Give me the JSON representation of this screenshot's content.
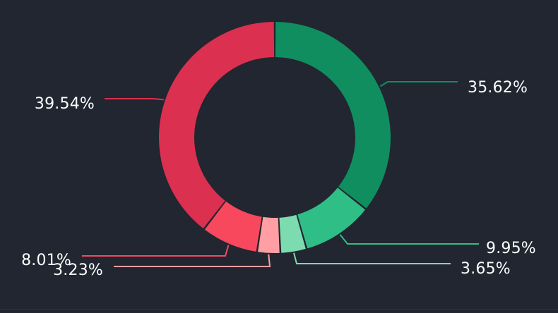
{
  "chart_data": {
    "type": "pie",
    "variant": "donut",
    "slices": [
      {
        "value": 35.62,
        "label": "35.62%",
        "color": "#108e5f"
      },
      {
        "value": 9.95,
        "label": "9.95%",
        "color": "#2fbf86"
      },
      {
        "value": 3.65,
        "label": "3.65%",
        "color": "#7ddbb0"
      },
      {
        "value": 3.23,
        "label": "3.23%",
        "color": "#ff9ea3"
      },
      {
        "value": 8.01,
        "label": "8.01%",
        "color": "#f7485e"
      },
      {
        "value": 39.54,
        "label": "39.54%",
        "color": "#dc3050"
      }
    ],
    "legend": "none",
    "background": "#212630"
  }
}
